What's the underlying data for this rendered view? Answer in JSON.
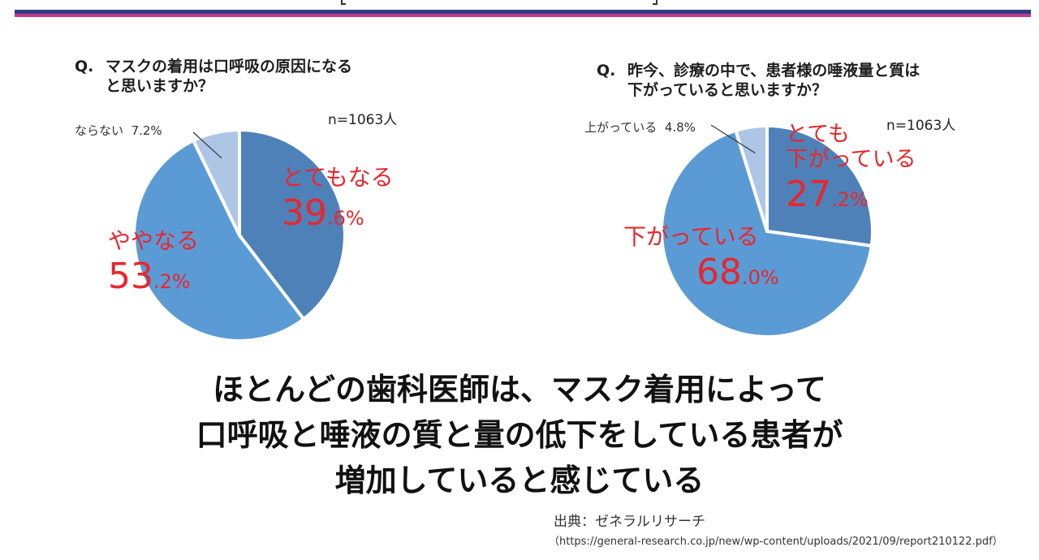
{
  "header": {
    "fragment": "「 ｜ 」"
  },
  "conclusion": {
    "line1": "ほとんどの歯科医師は、マスク着用によって",
    "line2": "口呼吸と唾液の質と量の低下をしている患者が",
    "line3": "増加していると感じている"
  },
  "source": {
    "label": "出典：ゼネラルリサーチ",
    "url": "（https://general-research.co.jp/new/wp-content/uploads/2021/09/report210122.pdf）"
  },
  "chart_data": [
    {
      "type": "pie",
      "title_prefix": "Q.",
      "title_line1": "マスクの着用は口呼吸の原因になる",
      "title_line2": "と思いますか？",
      "sample_size": "n=1063人",
      "slices": [
        {
          "label": "とてもなる",
          "value": 39.6,
          "pct_int": "39",
          "pct_dec": ".6%",
          "color": "#4f81b9"
        },
        {
          "label": "ややなる",
          "value": 53.2,
          "pct_int": "53",
          "pct_dec": ".2%",
          "color": "#5b9bd5"
        },
        {
          "label": "ならない",
          "value": 7.2,
          "pct_text": "7.2%",
          "color": "#aec6e6"
        }
      ]
    },
    {
      "type": "pie",
      "title_prefix": "Q.",
      "title_line1": "昨今、診療の中で、患者様の唾液量と質は",
      "title_line2": "下がっていると思いますか？",
      "sample_size": "n=1063人",
      "slices": [
        {
          "label_line1": "とても",
          "label_line2": "下がっている",
          "value": 27.2,
          "pct_int": "27",
          "pct_dec": ".2%",
          "color": "#4f81b9"
        },
        {
          "label": "下がっている",
          "value": 68.0,
          "pct_int": "68",
          "pct_dec": ".0%",
          "color": "#5b9bd5"
        },
        {
          "label": "上がっている",
          "value": 4.8,
          "pct_text": "4.8%",
          "color": "#aec6e6"
        }
      ]
    }
  ]
}
